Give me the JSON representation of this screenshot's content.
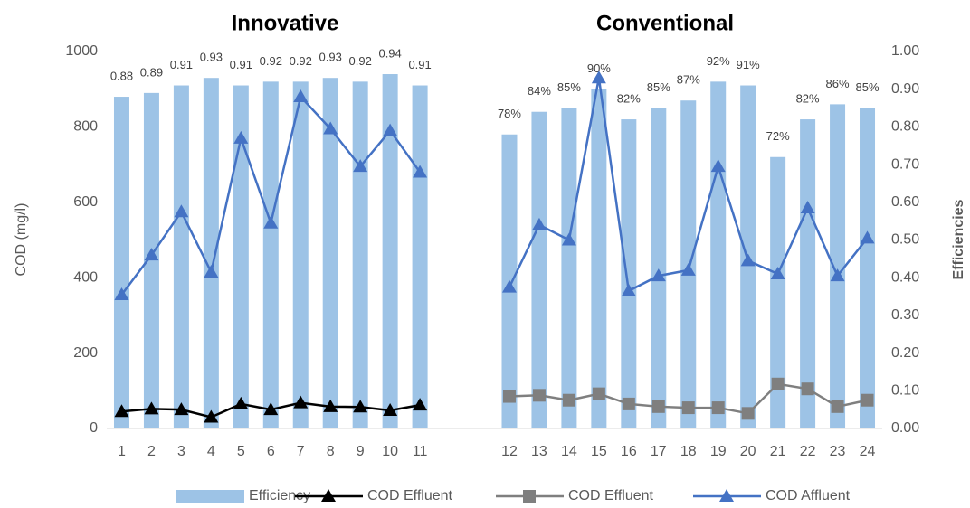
{
  "chart_data": {
    "type": "bar",
    "annotations": [
      "Innovative",
      "Conventional"
    ],
    "ylabel": "COD (mg/l)",
    "y2label": "Efficiencies",
    "categories": [
      "1",
      "2",
      "3",
      "4",
      "5",
      "6",
      "7",
      "8",
      "9",
      "10",
      "11",
      null,
      null,
      "12",
      "13",
      "14",
      "15",
      "16",
      "17",
      "18",
      "19",
      "20",
      "21",
      "22",
      "23",
      "24"
    ],
    "ylim": [
      0,
      1000
    ],
    "yticks": [
      0,
      200,
      400,
      600,
      800,
      1000
    ],
    "y2lim": [
      0,
      1
    ],
    "y2ticks": [
      {
        "value": 0,
        "label": "0.00"
      },
      {
        "value": 0.1,
        "label": "0.10"
      },
      {
        "value": 0.2,
        "label": "0.20"
      },
      {
        "value": 0.3,
        "label": "0.30"
      },
      {
        "value": 0.4,
        "label": "0.40"
      },
      {
        "value": 0.5,
        "label": "0.50"
      },
      {
        "value": 0.6,
        "label": "0.60"
      },
      {
        "value": 0.7,
        "label": "0.70"
      },
      {
        "value": 0.8,
        "label": "0.80"
      },
      {
        "value": 0.9,
        "label": "0.90"
      },
      {
        "value": 1,
        "label": "1.00"
      }
    ],
    "grid": false,
    "series": [
      {
        "name": "Efficiency",
        "type": "bar",
        "axis": "y2",
        "color": "#9dc3e6",
        "values": [
          0.88,
          0.89,
          0.91,
          0.93,
          0.91,
          0.92,
          0.92,
          0.93,
          0.92,
          0.94,
          0.91,
          null,
          null,
          0.78,
          0.84,
          0.85,
          0.9,
          0.82,
          0.85,
          0.87,
          0.92,
          0.91,
          0.72,
          0.82,
          0.86,
          0.85
        ],
        "value_labels": [
          "0.88",
          "0.89",
          "0.91",
          "0.93",
          "0.91",
          "0.92",
          "0.92",
          "0.93",
          "0.92",
          "0.94",
          "0.91",
          null,
          null,
          "78%",
          "84%",
          "85%",
          "90%",
          "82%",
          "85%",
          "87%",
          "92%",
          "91%",
          "72%",
          "82%",
          "86%",
          "85%"
        ]
      },
      {
        "name": "COD Effluent",
        "type": "line",
        "marker": "triangle",
        "color": "#000000",
        "values": [
          45,
          52,
          50,
          30,
          65,
          50,
          68,
          58,
          57,
          48,
          62,
          null,
          null,
          null,
          null,
          null,
          null,
          null,
          null,
          null,
          null,
          null,
          null,
          null,
          null,
          null
        ]
      },
      {
        "name": "COD Effluent",
        "type": "line",
        "marker": "square",
        "color": "#7f7f7f",
        "values": [
          null,
          null,
          null,
          null,
          null,
          null,
          null,
          null,
          null,
          null,
          null,
          null,
          null,
          85,
          88,
          75,
          92,
          65,
          58,
          55,
          55,
          40,
          118,
          105,
          58,
          75
        ]
      },
      {
        "name": "COD Affluent",
        "type": "line",
        "marker": "triangle",
        "color": "#4472c4",
        "values": [
          355,
          460,
          575,
          415,
          770,
          545,
          880,
          795,
          695,
          790,
          680,
          null,
          null,
          375,
          540,
          500,
          930,
          365,
          405,
          420,
          695,
          445,
          410,
          585,
          405,
          505
        ]
      }
    ]
  }
}
